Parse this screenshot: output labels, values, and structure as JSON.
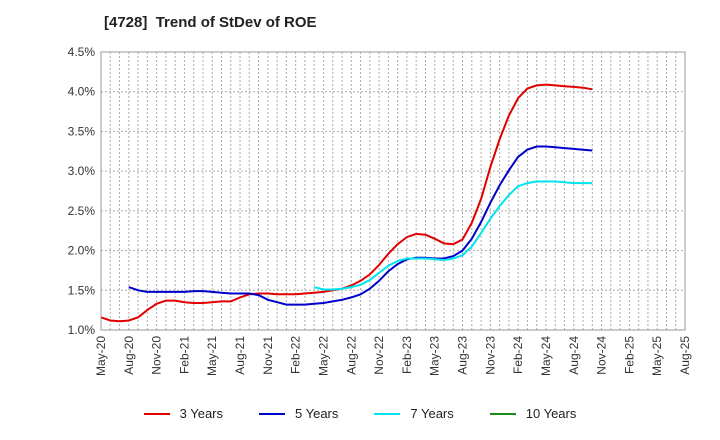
{
  "title": "[4728]  Trend of StDev of ROE",
  "chart_data": {
    "type": "line",
    "title": "[4728]  Trend of StDev of ROE",
    "x_tick_labels": [
      "May-20",
      "Aug-20",
      "Nov-20",
      "Feb-21",
      "May-21",
      "Aug-21",
      "Nov-21",
      "Feb-22",
      "May-22",
      "Aug-22",
      "Nov-22",
      "Feb-23",
      "May-23",
      "Aug-23",
      "Nov-23",
      "Feb-24",
      "May-24",
      "Aug-24",
      "Nov-24",
      "Feb-25",
      "May-25",
      "Aug-25"
    ],
    "y_tick_labels": [
      "1.0%",
      "1.5%",
      "2.0%",
      "2.5%",
      "3.0%",
      "3.5%",
      "4.0%",
      "4.5%"
    ],
    "ylim": [
      1.0,
      4.5
    ],
    "grid": true,
    "legend_position": "bottom",
    "series": [
      {
        "name": "3 Years",
        "color": "#e00000",
        "values": [
          1.16,
          1.12,
          1.11,
          1.12,
          1.16,
          1.25,
          1.33,
          1.37,
          1.37,
          1.35,
          1.34,
          1.34,
          1.35,
          1.36,
          1.36,
          1.41,
          1.45,
          1.46,
          1.46,
          1.45,
          1.45,
          1.45,
          1.46,
          1.47,
          1.48,
          1.5,
          1.52,
          1.56,
          1.62,
          1.7,
          1.82,
          1.96,
          2.08,
          2.17,
          2.21,
          2.2,
          2.15,
          2.09,
          2.08,
          2.14,
          2.35,
          2.65,
          3.05,
          3.4,
          3.7,
          3.92,
          4.04,
          4.08,
          4.09,
          4.08,
          4.07,
          4.06,
          4.05,
          4.03
        ]
      },
      {
        "name": "5 Years",
        "color": "#0000cc",
        "values": [
          null,
          null,
          null,
          1.54,
          1.5,
          1.48,
          1.48,
          1.48,
          1.48,
          1.48,
          1.49,
          1.49,
          1.48,
          1.47,
          1.46,
          1.46,
          1.46,
          1.44,
          1.38,
          1.35,
          1.32,
          1.32,
          1.32,
          1.33,
          1.34,
          1.36,
          1.38,
          1.41,
          1.45,
          1.52,
          1.62,
          1.74,
          1.83,
          1.89,
          1.91,
          1.91,
          1.9,
          1.9,
          1.93,
          2.0,
          2.15,
          2.36,
          2.6,
          2.82,
          3.01,
          3.18,
          3.27,
          3.31,
          3.31,
          3.3,
          3.29,
          3.28,
          3.27,
          3.26
        ]
      },
      {
        "name": "7 Years",
        "color": "#00e5ee",
        "values": [
          null,
          null,
          null,
          null,
          null,
          null,
          null,
          null,
          null,
          null,
          null,
          null,
          null,
          null,
          null,
          null,
          null,
          null,
          null,
          null,
          null,
          null,
          null,
          1.54,
          1.51,
          1.51,
          1.52,
          1.54,
          1.57,
          1.63,
          1.72,
          1.81,
          1.87,
          1.9,
          1.9,
          1.9,
          1.89,
          1.88,
          1.9,
          1.94,
          2.05,
          2.22,
          2.4,
          2.56,
          2.7,
          2.81,
          2.85,
          2.87,
          2.87,
          2.87,
          2.86,
          2.85,
          2.85,
          2.85
        ]
      },
      {
        "name": "10 Years",
        "color": "#1a8a1a",
        "values": []
      }
    ]
  }
}
